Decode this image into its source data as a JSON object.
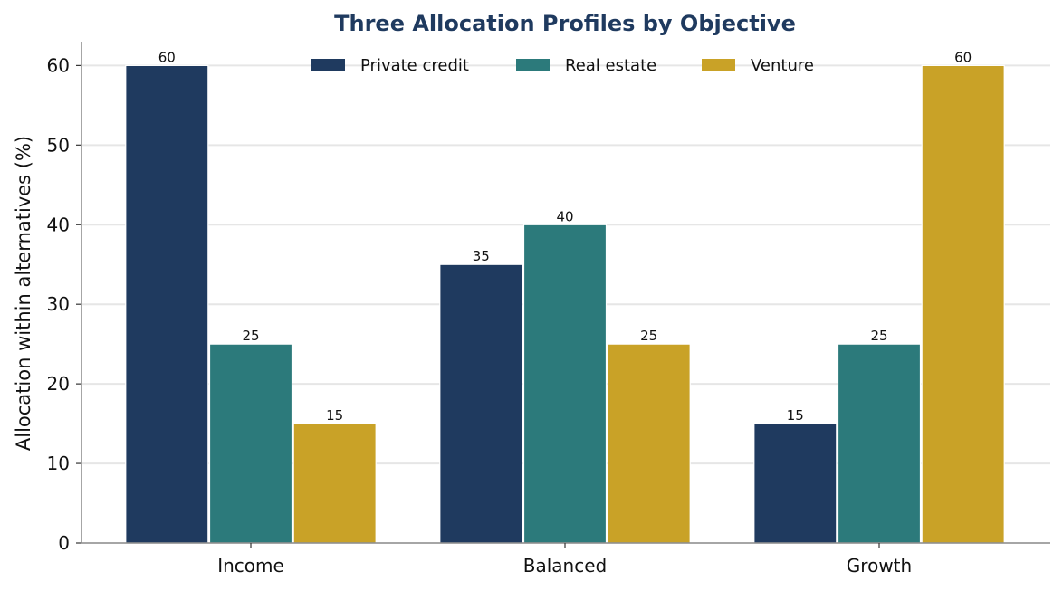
{
  "chart_data": {
    "type": "bar",
    "title": "Three Allocation Profiles by Objective",
    "xlabel": "",
    "ylabel": "Allocation within alternatives (%)",
    "categories": [
      "Income",
      "Balanced",
      "Growth"
    ],
    "series": [
      {
        "name": "Private credit",
        "values": [
          60,
          35,
          15
        ],
        "color": "#1f3a5f"
      },
      {
        "name": "Real estate",
        "values": [
          25,
          40,
          25
        ],
        "color": "#2c7a7b"
      },
      {
        "name": "Venture",
        "values": [
          15,
          25,
          60
        ],
        "color": "#c9a227"
      }
    ],
    "ylim": [
      0,
      63
    ],
    "yticks": [
      "0",
      "10",
      "20",
      "30",
      "40",
      "50",
      "60"
    ],
    "grid": "horizontal",
    "legend_placement": "top-center",
    "title_color": "#1f3a5f",
    "grid_color": "#e6e6e6",
    "axis_color": "#888888"
  }
}
